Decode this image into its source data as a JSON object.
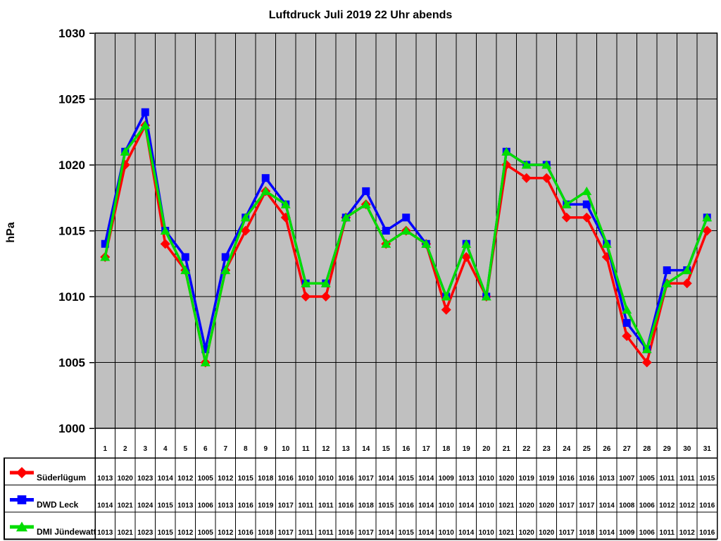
{
  "page": {
    "background": "#FFFFFF"
  },
  "chart_data": {
    "type": "line",
    "title": "Luftdruck Juli 2019 22 Uhr abends",
    "ylabel": "hPa",
    "ylim": [
      1000,
      1030
    ],
    "yticks": [
      1000,
      1005,
      1010,
      1015,
      1020,
      1025,
      1030
    ],
    "categories": [
      1,
      2,
      3,
      4,
      5,
      6,
      7,
      8,
      9,
      10,
      11,
      12,
      13,
      14,
      15,
      16,
      17,
      18,
      19,
      20,
      21,
      22,
      23,
      24,
      25,
      26,
      27,
      28,
      29,
      30,
      31
    ],
    "grid": true,
    "plot_background": "#C0C0C0",
    "gridline_color": "#000000",
    "legend_position": "bottom-table-left-column",
    "data_table_shown": true,
    "series": [
      {
        "name": "Süderlügum",
        "color": "#FF0000",
        "marker": "diamond",
        "values": [
          1013,
          1020,
          1023,
          1014,
          1012,
          1005,
          1012,
          1015,
          1018,
          1016,
          1010,
          1010,
          1016,
          1017,
          1014,
          1015,
          1014,
          1009,
          1013,
          1010,
          1020,
          1019,
          1019,
          1016,
          1016,
          1013,
          1007,
          1005,
          1011,
          1011,
          1015
        ]
      },
      {
        "name": "DWD Leck",
        "color": "#0000FF",
        "marker": "square",
        "values": [
          1014,
          1021,
          1024,
          1015,
          1013,
          1006,
          1013,
          1016,
          1019,
          1017,
          1011,
          1011,
          1016,
          1018,
          1015,
          1016,
          1014,
          1010,
          1014,
          1010,
          1021,
          1020,
          1020,
          1017,
          1017,
          1014,
          1008,
          1006,
          1012,
          1012,
          1016
        ]
      },
      {
        "name": "DMI Jündewatt",
        "color": "#00DD00",
        "marker": "triangle",
        "values": [
          1013,
          1021,
          1023,
          1015,
          1012,
          1005,
          1012,
          1016,
          1018,
          1017,
          1011,
          1011,
          1016,
          1017,
          1014,
          1015,
          1014,
          1010,
          1014,
          1010,
          1021,
          1020,
          1020,
          1017,
          1018,
          1014,
          1009,
          1006,
          1011,
          1012,
          1016
        ]
      }
    ]
  }
}
